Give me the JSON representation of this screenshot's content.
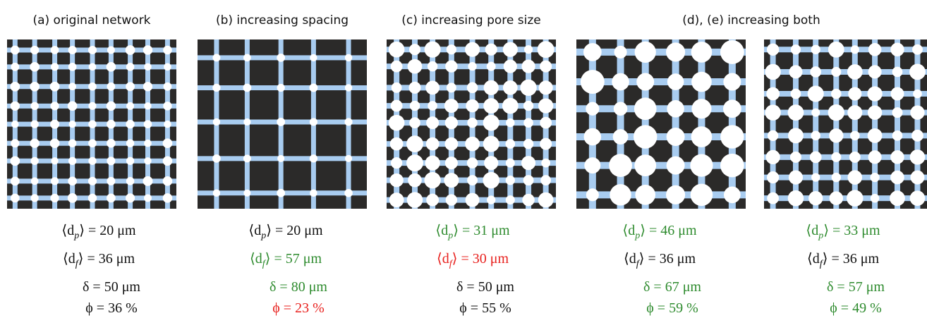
{
  "panels": [
    {
      "title": "(a) original network",
      "metrics": [
        {
          "pre": "⟨d",
          "sub": "p",
          "post": "⟩ = 20 μm",
          "color": "#111111"
        },
        {
          "pre": "⟨d",
          "sub": "f",
          "post": "⟩ = 36 μm",
          "color": "#111111"
        },
        {
          "pre": "δ = 50 μm",
          "color": "#111111"
        },
        {
          "pre": "ϕ = 36 %",
          "color": "#111111"
        }
      ]
    },
    {
      "title": "(b) increasing spacing",
      "metrics": [
        {
          "pre": "⟨d",
          "sub": "p",
          "post": "⟩ = 20 μm",
          "color": "#111111"
        },
        {
          "pre": "⟨d",
          "sub": "f",
          "post": "⟩ = 57 μm",
          "color": "#2e8b2e"
        },
        {
          "pre": "δ = 80 μm",
          "color": "#2e8b2e"
        },
        {
          "pre": "ϕ = 23 %",
          "color": "#e8211e"
        }
      ]
    },
    {
      "title": "(c) increasing pore size",
      "metrics": [
        {
          "pre": "⟨d",
          "sub": "p",
          "post": "⟩ = 31 μm",
          "color": "#2e8b2e"
        },
        {
          "pre": "⟨d",
          "sub": "f",
          "post": "⟩ = 30 μm",
          "color": "#e8211e"
        },
        {
          "pre": "δ = 50 μm",
          "color": "#111111"
        },
        {
          "pre": "ϕ = 55 %",
          "color": "#111111"
        }
      ]
    },
    {
      "title": "(d), (e) increasing both",
      "metrics": [
        {
          "pre": "⟨d",
          "sub": "p",
          "post": "⟩ = 46 μm",
          "color": "#2e8b2e"
        },
        {
          "pre": "⟨d",
          "sub": "f",
          "post": "⟩ = 36 μm",
          "color": "#111111"
        },
        {
          "pre": "δ = 67 μm",
          "color": "#2e8b2e"
        },
        {
          "pre": "ϕ = 59 %",
          "color": "#2e8b2e"
        }
      ]
    },
    {
      "metrics": [
        {
          "pre": "⟨d",
          "sub": "p",
          "post": "⟩ = 33 μm",
          "color": "#2e8b2e"
        },
        {
          "pre": "⟨d",
          "sub": "f",
          "post": "⟩ = 36 μm",
          "color": "#111111"
        },
        {
          "pre": "δ = 57 μm",
          "color": "#2e8b2e"
        },
        {
          "pre": "ϕ = 49 %",
          "color": "#2e8b2e"
        }
      ]
    }
  ]
}
